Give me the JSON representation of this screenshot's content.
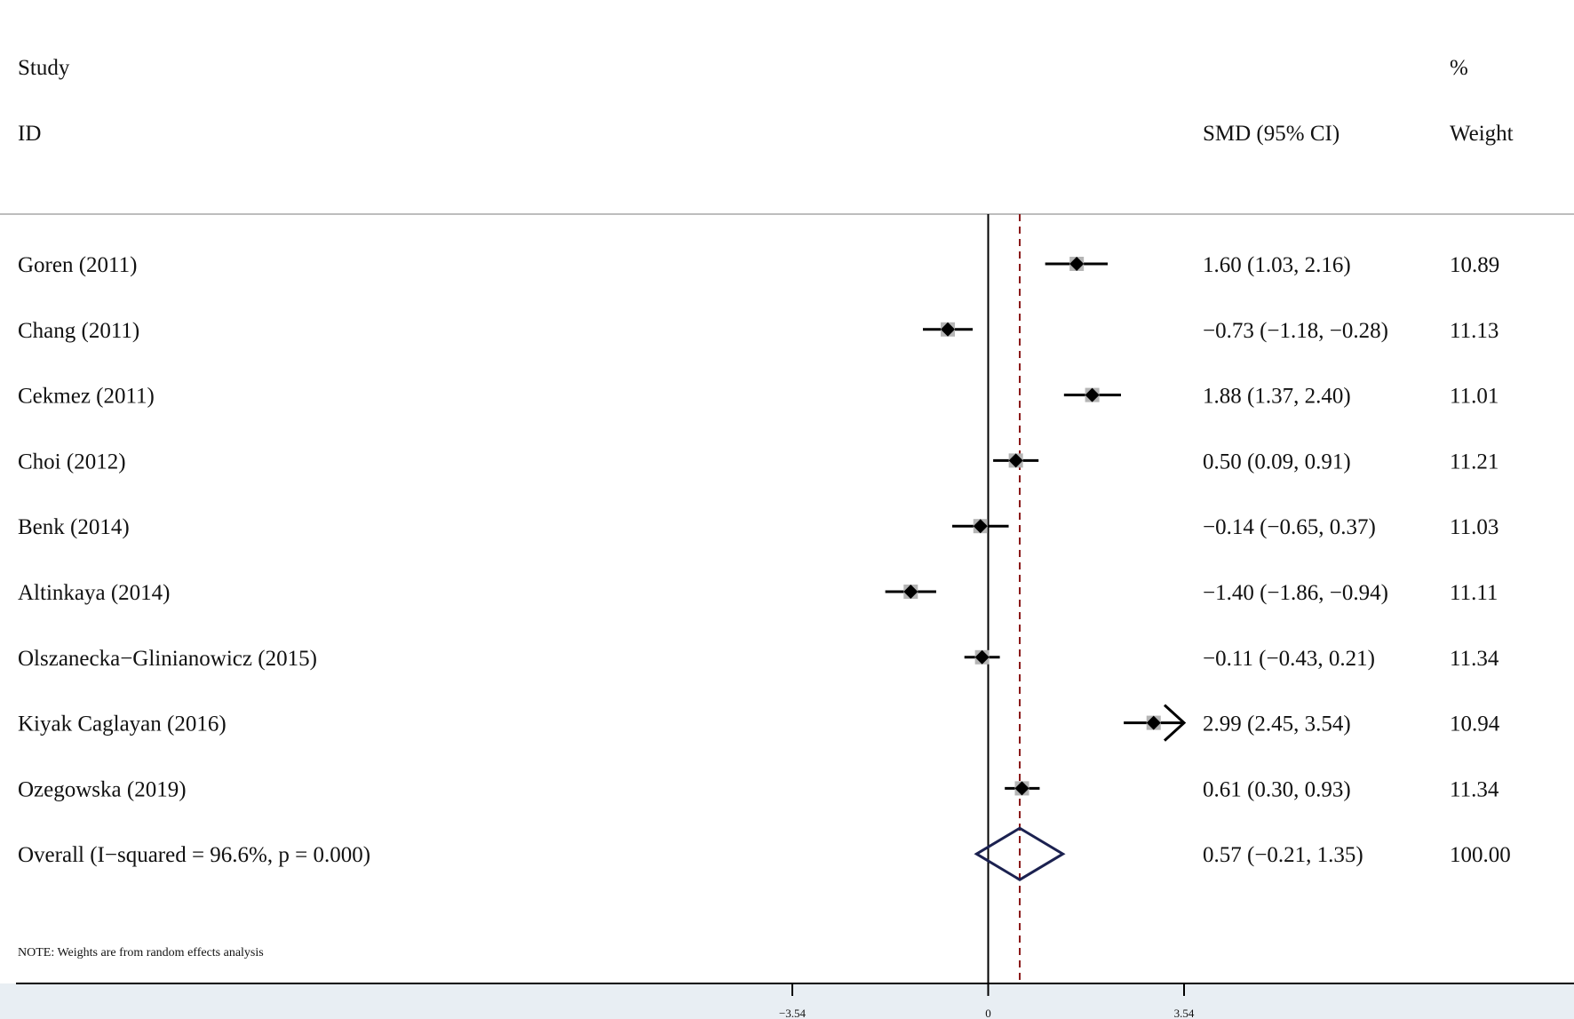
{
  "header": {
    "study": "Study",
    "id": "ID",
    "smd": "SMD (95% CI)",
    "percent": "%",
    "weight": "Weight"
  },
  "note": "NOTE: Weights are from random effects analysis",
  "chart_data": {
    "type": "forest",
    "xlim": [
      -3.54,
      3.54
    ],
    "xticks": [
      {
        "value": -3.54,
        "label": "−3.54"
      },
      {
        "value": 0,
        "label": "0"
      },
      {
        "value": 3.54,
        "label": "3.54"
      }
    ],
    "null_line": 0,
    "pooled_line": 0.57,
    "studies": [
      {
        "label": "Goren (2011)",
        "smd": 1.6,
        "lo": 1.03,
        "hi": 2.16,
        "ci_text": "1.60 (1.03, 2.16)",
        "weight": "10.89"
      },
      {
        "label": "Chang (2011)",
        "smd": -0.73,
        "lo": -1.18,
        "hi": -0.28,
        "ci_text": "−0.73 (−1.18, −0.28)",
        "weight": "11.13"
      },
      {
        "label": "Cekmez (2011)",
        "smd": 1.88,
        "lo": 1.37,
        "hi": 2.4,
        "ci_text": "1.88 (1.37, 2.40)",
        "weight": "11.01"
      },
      {
        "label": "Choi (2012)",
        "smd": 0.5,
        "lo": 0.09,
        "hi": 0.91,
        "ci_text": "0.50 (0.09, 0.91)",
        "weight": "11.21"
      },
      {
        "label": "Benk (2014)",
        "smd": -0.14,
        "lo": -0.65,
        "hi": 0.37,
        "ci_text": "−0.14 (−0.65, 0.37)",
        "weight": "11.03"
      },
      {
        "label": "Altinkaya (2014)",
        "smd": -1.4,
        "lo": -1.86,
        "hi": -0.94,
        "ci_text": "−1.40 (−1.86, −0.94)",
        "weight": "11.11"
      },
      {
        "label": "Olszanecka−Glinianowicz (2015)",
        "smd": -0.11,
        "lo": -0.43,
        "hi": 0.21,
        "ci_text": "−0.11 (−0.43, 0.21)",
        "weight": "11.34"
      },
      {
        "label": "Kiyak Caglayan (2016)",
        "smd": 2.99,
        "lo": 2.45,
        "hi": 3.54,
        "ci_text": "2.99 (2.45, 3.54)",
        "weight": "10.94"
      },
      {
        "label": "Ozegowska (2019)",
        "smd": 0.61,
        "lo": 0.3,
        "hi": 0.93,
        "ci_text": "0.61 (0.30, 0.93)",
        "weight": "11.34"
      }
    ],
    "overall": {
      "label": "Overall  (I−squared = 96.6%, p = 0.000)",
      "smd": 0.57,
      "lo": -0.21,
      "hi": 1.35,
      "ci_text": "0.57 (−0.21, 1.35)",
      "weight": "100.00"
    },
    "colors": {
      "line": "#000000",
      "box": "#b5b5b5",
      "pooled_line": "#8b1a1a",
      "diamond": "#1b2150",
      "axis_band": "#e8eef3",
      "separator": "#bdbdbd"
    }
  }
}
